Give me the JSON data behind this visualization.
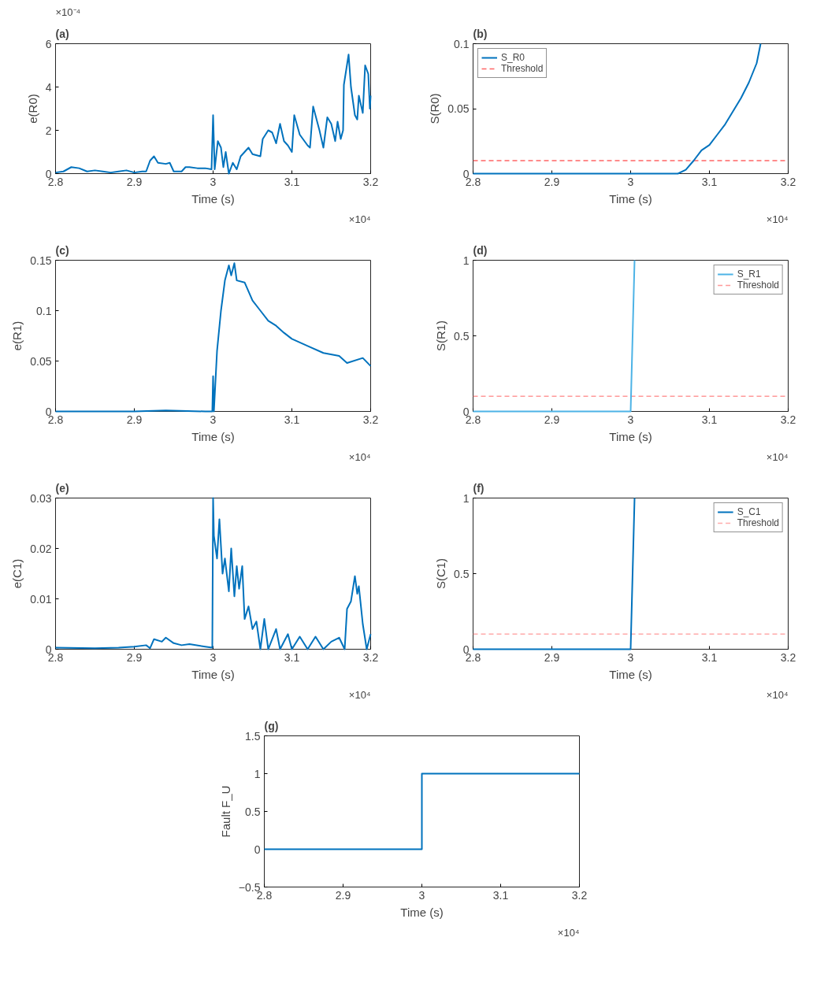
{
  "chart_data": [
    {
      "type": "line",
      "title": "(a)",
      "xlabel": "Time (s)",
      "ylabel": "e(R0)",
      "annotations": [
        "×10⁻⁴",
        "×10⁴"
      ],
      "xlim": [
        2.8,
        3.2
      ],
      "xticks": [
        2.8,
        2.9,
        3,
        3.1,
        3.2
      ],
      "ylim": [
        0,
        6
      ],
      "yticks": [
        0,
        2,
        4,
        6
      ],
      "x": [
        2.8,
        2.81,
        2.82,
        2.83,
        2.84,
        2.85,
        2.86,
        2.87,
        2.88,
        2.89,
        2.9,
        2.91,
        2.915,
        2.92,
        2.925,
        2.93,
        2.94,
        2.945,
        2.95,
        2.96,
        2.965,
        2.97,
        2.98,
        2.99,
        2.998,
        3.0,
        3.002,
        3.006,
        3.01,
        3.013,
        3.016,
        3.02,
        3.025,
        3.03,
        3.035,
        3.04,
        3.045,
        3.05,
        3.06,
        3.063,
        3.07,
        3.075,
        3.08,
        3.085,
        3.09,
        3.095,
        3.1,
        3.103,
        3.11,
        3.12,
        3.123,
        3.127,
        3.135,
        3.14,
        3.145,
        3.15,
        3.155,
        3.158,
        3.162,
        3.165,
        3.166,
        3.172,
        3.175,
        3.18,
        3.183,
        3.185,
        3.19,
        3.193,
        3.197,
        3.199,
        3.2
      ],
      "series": [
        {
          "color": "#0072bd",
          "values": [
            0.05,
            0.1,
            0.3,
            0.25,
            0.1,
            0.15,
            0.1,
            0.05,
            0.1,
            0.15,
            0.05,
            0.1,
            0.1,
            0.6,
            0.8,
            0.5,
            0.45,
            0.5,
            0.1,
            0.1,
            0.3,
            0.3,
            0.25,
            0.25,
            0.2,
            2.7,
            0.2,
            1.5,
            1.2,
            0.3,
            1.0,
            0.0,
            0.5,
            0.2,
            0.8,
            1.0,
            1.2,
            0.9,
            0.8,
            1.6,
            2.0,
            1.9,
            1.4,
            2.3,
            1.5,
            1.3,
            1.0,
            2.7,
            1.8,
            1.3,
            1.2,
            3.1,
            2.0,
            1.2,
            2.6,
            2.3,
            1.5,
            2.4,
            1.6,
            2.0,
            4.1,
            5.5,
            4.0,
            2.7,
            2.5,
            3.6,
            2.8,
            5.0,
            4.6,
            3.0,
            3.6
          ]
        }
      ]
    },
    {
      "type": "line",
      "title": "(b)",
      "xlabel": "Time (s)",
      "ylabel": "S(R0)",
      "annotations": [
        "×10⁴"
      ],
      "legend": "top left",
      "xlim": [
        2.8,
        3.2
      ],
      "xticks": [
        2.8,
        2.9,
        3,
        3.1,
        3.2
      ],
      "ylim": [
        0,
        0.1
      ],
      "yticks": [
        0,
        0.05,
        0.1
      ],
      "x": [
        2.8,
        2.9,
        3.0,
        3.06,
        3.07,
        3.08,
        3.09,
        3.1,
        3.11,
        3.12,
        3.13,
        3.14,
        3.15,
        3.16,
        3.165
      ],
      "series": [
        {
          "name": "S_R0",
          "color": "#0072bd",
          "values": [
            0,
            0,
            0,
            0,
            0.003,
            0.01,
            0.018,
            0.022,
            0.03,
            0.038,
            0.048,
            0.058,
            0.07,
            0.085,
            0.1
          ]
        }
      ],
      "ref_lines": [
        {
          "axis": "y",
          "value": 0.01,
          "label": "Threshold",
          "color": "#ff6666",
          "line_style": "dashed"
        }
      ]
    },
    {
      "type": "line",
      "title": "(c)",
      "xlabel": "Time (s)",
      "ylabel": "e(R1)",
      "annotations": [
        "×10⁴"
      ],
      "xlim": [
        2.8,
        3.2
      ],
      "xticks": [
        2.8,
        2.9,
        3,
        3.1,
        3.2
      ],
      "ylim": [
        0,
        0.15
      ],
      "yticks": [
        0,
        0.05,
        0.1,
        0.15
      ],
      "x": [
        2.8,
        2.9,
        2.94,
        2.99,
        2.999,
        3.0,
        3.001,
        3.005,
        3.01,
        3.015,
        3.02,
        3.023,
        3.027,
        3.03,
        3.04,
        3.05,
        3.06,
        3.07,
        3.08,
        3.09,
        3.1,
        3.12,
        3.14,
        3.16,
        3.17,
        3.19,
        3.2
      ],
      "series": [
        {
          "color": "#0072bd",
          "values": [
            0,
            0,
            0.001,
            0,
            0,
            0.035,
            0.0,
            0.06,
            0.1,
            0.13,
            0.145,
            0.135,
            0.147,
            0.13,
            0.128,
            0.11,
            0.1,
            0.09,
            0.085,
            0.078,
            0.072,
            0.065,
            0.058,
            0.055,
            0.048,
            0.053,
            0.045
          ]
        }
      ]
    },
    {
      "type": "line",
      "title": "(d)",
      "xlabel": "Time (s)",
      "ylabel": "S(R1)",
      "annotations": [
        "×10⁴"
      ],
      "legend": "top right",
      "xlim": [
        2.8,
        3.2
      ],
      "xticks": [
        2.8,
        2.9,
        3,
        3.1,
        3.2
      ],
      "ylim": [
        0,
        1
      ],
      "yticks": [
        0,
        0.5,
        1
      ],
      "x": [
        2.8,
        3.0,
        3.005
      ],
      "series": [
        {
          "name": "S_R1",
          "color": "#4db3e6",
          "values": [
            0,
            0,
            1
          ]
        }
      ],
      "ref_lines": [
        {
          "axis": "y",
          "value": 0.1,
          "label": "Threshold",
          "color": "#ff9999",
          "line_style": "dashed"
        }
      ]
    },
    {
      "type": "line",
      "title": "(e)",
      "xlabel": "Time (s)",
      "ylabel": "e(C1)",
      "annotations": [
        "×10⁴"
      ],
      "xlim": [
        2.8,
        3.2
      ],
      "xticks": [
        2.8,
        2.9,
        3,
        3.1,
        3.2
      ],
      "ylim": [
        0,
        0.03
      ],
      "yticks": [
        0,
        0.01,
        0.02,
        0.03
      ],
      "x": [
        2.8,
        2.85,
        2.88,
        2.9,
        2.915,
        2.92,
        2.925,
        2.935,
        2.94,
        2.95,
        2.96,
        2.97,
        2.99,
        2.999,
        3.0,
        3.001,
        3.005,
        3.008,
        3.012,
        3.015,
        3.02,
        3.023,
        3.027,
        3.03,
        3.033,
        3.037,
        3.04,
        3.045,
        3.05,
        3.055,
        3.06,
        3.065,
        3.07,
        3.08,
        3.085,
        3.095,
        3.1,
        3.11,
        3.12,
        3.13,
        3.14,
        3.15,
        3.16,
        3.167,
        3.17,
        3.175,
        3.18,
        3.183,
        3.185,
        3.19,
        3.195,
        3.2
      ],
      "series": [
        {
          "color": "#0072bd",
          "values": [
            0.0003,
            0.0002,
            0.0003,
            0.0005,
            0.0008,
            0.0002,
            0.002,
            0.0015,
            0.0023,
            0.0012,
            0.0008,
            0.001,
            0.0005,
            0.0003,
            0.03,
            0.0225,
            0.018,
            0.0258,
            0.015,
            0.018,
            0.0115,
            0.02,
            0.0105,
            0.0165,
            0.012,
            0.0165,
            0.006,
            0.0085,
            0.004,
            0.0055,
            0.0,
            0.006,
            0.0,
            0.004,
            0.0,
            0.003,
            0.0,
            0.0025,
            0.0,
            0.0025,
            0.0,
            0.0015,
            0.0023,
            0.0,
            0.008,
            0.0095,
            0.0145,
            0.011,
            0.0125,
            0.005,
            0.0,
            0.003
          ]
        }
      ]
    },
    {
      "type": "line",
      "title": "(f)",
      "xlabel": "Time (s)",
      "ylabel": "S(C1)",
      "annotations": [
        "×10⁴"
      ],
      "legend": "top right",
      "xlim": [
        2.8,
        3.2
      ],
      "xticks": [
        2.8,
        2.9,
        3,
        3.1,
        3.2
      ],
      "ylim": [
        0,
        1
      ],
      "yticks": [
        0,
        0.5,
        1
      ],
      "x": [
        2.8,
        3.0,
        3.005
      ],
      "series": [
        {
          "name": "S_C1",
          "color": "#0072bd",
          "values": [
            0,
            0,
            1
          ]
        }
      ],
      "ref_lines": [
        {
          "axis": "y",
          "value": 0.1,
          "label": "Threshold",
          "color": "#ffaaaa",
          "line_style": "dashed"
        }
      ]
    },
    {
      "type": "step",
      "title": "(g)",
      "xlabel": "Time (s)",
      "ylabel": "Fault F_U",
      "annotations": [
        "×10⁴"
      ],
      "xlim": [
        2.8,
        3.2
      ],
      "xticks": [
        2.8,
        2.9,
        3,
        3.1,
        3.2
      ],
      "ylim": [
        -0.5,
        1.5
      ],
      "yticks": [
        -0.5,
        0,
        0.5,
        1,
        1.5
      ],
      "x": [
        2.8,
        3.0,
        3.2
      ],
      "series": [
        {
          "color": "#0072bd",
          "values": [
            0,
            1,
            1
          ]
        }
      ]
    }
  ]
}
